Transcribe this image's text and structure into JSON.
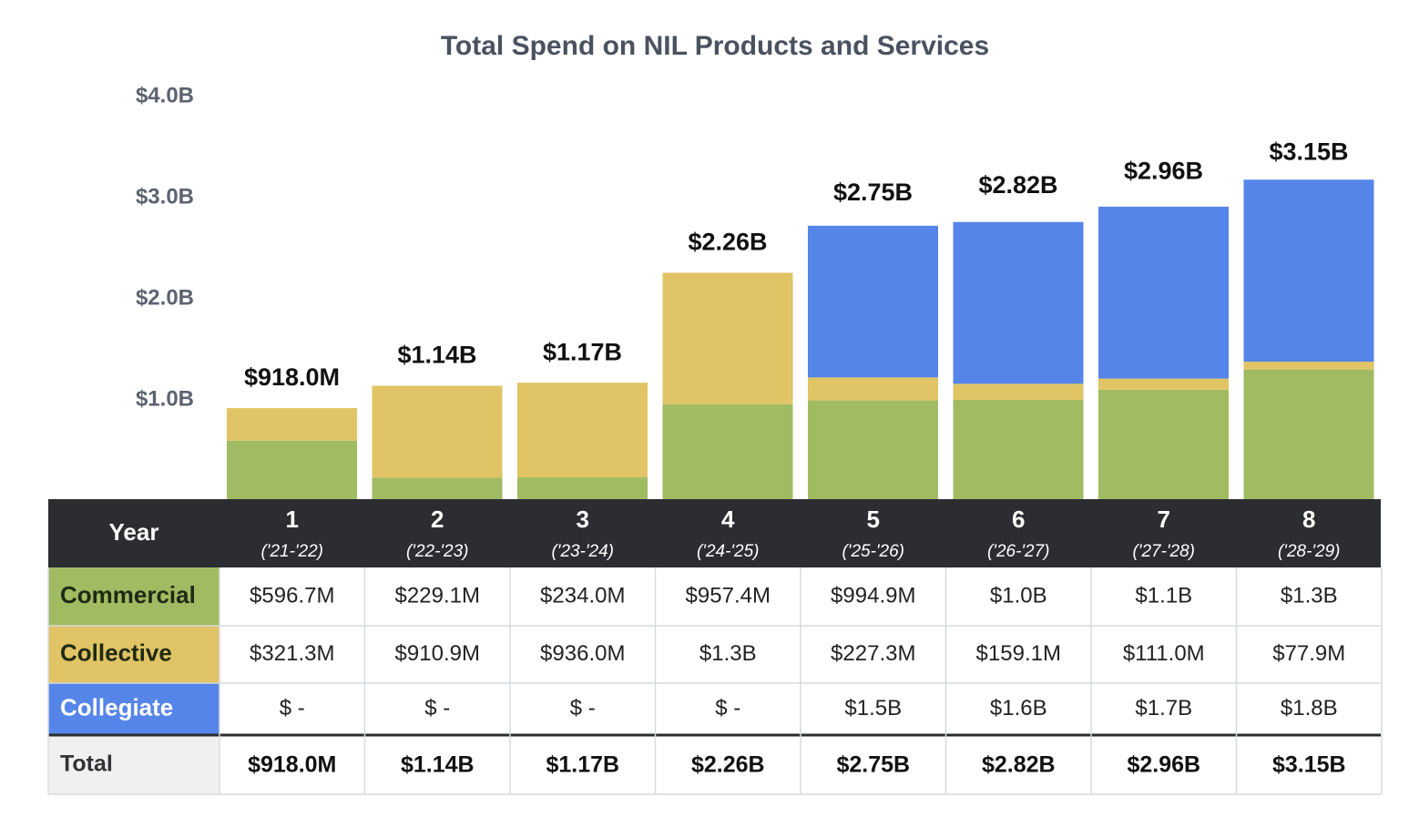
{
  "chart_data": {
    "type": "stacked_bar",
    "title": "Total Spend on NIL Products and Services",
    "categories": [
      "1",
      "2",
      "3",
      "4",
      "5",
      "6",
      "7",
      "8"
    ],
    "periods": [
      "('21-'22)",
      "('22-'23)",
      "('23-'24)",
      "('24-'25)",
      "('25-'26)",
      "('26-'27)",
      "('27-'28)",
      "('28-'29)"
    ],
    "table_header": "Year",
    "series": [
      {
        "name": "Commercial",
        "color": "#a0bb62",
        "values": [
          0.5967,
          0.2291,
          0.234,
          0.9574,
          0.9949,
          1.0,
          1.1,
          1.3
        ],
        "value_labels": [
          "$596.7M",
          "$229.1M",
          "$234.0M",
          "$957.4M",
          "$994.9M",
          "$1.0B",
          "$1.1B",
          "$1.3B"
        ]
      },
      {
        "name": "Collective",
        "color": "#e0c465",
        "values": [
          0.3213,
          0.9109,
          0.936,
          1.3,
          0.2273,
          0.1591,
          0.111,
          0.0779
        ],
        "value_labels": [
          "$321.3M",
          "$910.9M",
          "$936.0M",
          "$1.3B",
          "$227.3M",
          "$159.1M",
          "$111.0M",
          "$77.9M"
        ]
      },
      {
        "name": "Collegiate",
        "color": "#5585e8",
        "values": [
          null,
          null,
          null,
          null,
          1.5,
          1.6,
          1.7,
          1.8
        ],
        "value_labels": [
          "$ -",
          "$ -",
          "$ -",
          "$ -",
          "$1.5B",
          "$1.6B",
          "$1.7B",
          "$1.8B"
        ]
      }
    ],
    "totals": {
      "name": "Total",
      "values": [
        0.918,
        1.14,
        1.17,
        2.26,
        2.75,
        2.82,
        2.96,
        3.15
      ],
      "value_labels": [
        "$918.0M",
        "$1.14B",
        "$1.17B",
        "$2.26B",
        "$2.75B",
        "$2.82B",
        "$2.96B",
        "$3.15B"
      ]
    },
    "ylim": [
      0,
      4
    ],
    "yticks": [
      {
        "value": 1,
        "label": "$1.0B"
      },
      {
        "value": 2,
        "label": "$2.0B"
      },
      {
        "value": 3,
        "label": "$3.0B"
      },
      {
        "value": 4,
        "label": "$4.0B"
      }
    ],
    "grid": false
  }
}
